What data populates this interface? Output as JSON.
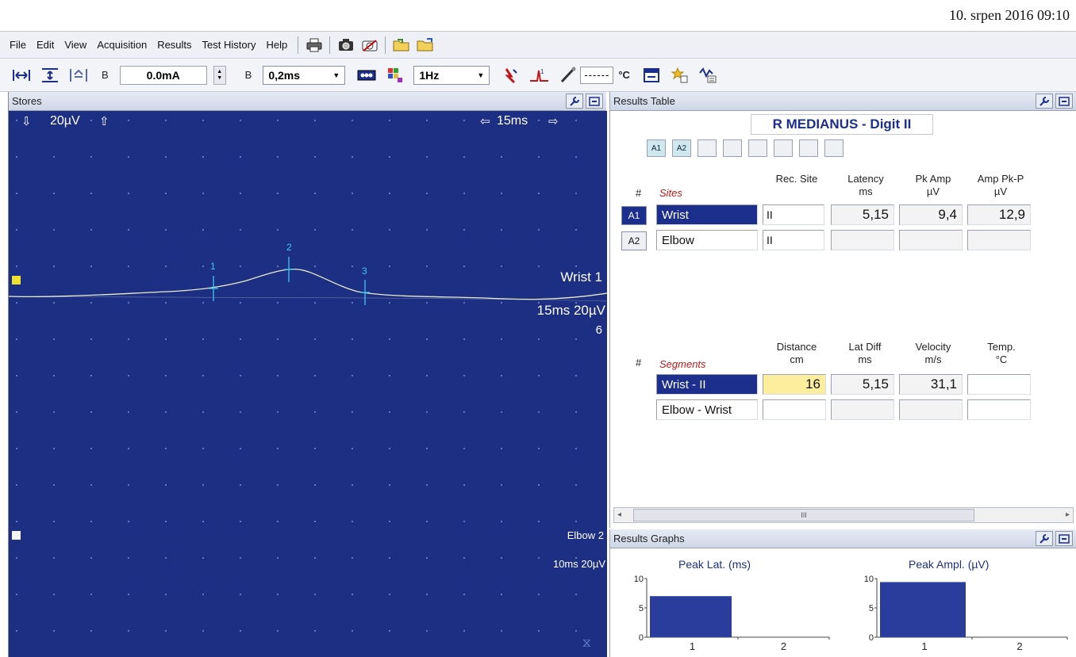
{
  "window": {
    "datetime": "10. srpen 2016 09:10"
  },
  "menu": [
    "File",
    "Edit",
    "View",
    "Acquisition",
    "Results",
    "Test History",
    "Help"
  ],
  "menu_icons": [
    "printer-icon",
    "camera-icon",
    "camera-off-icon",
    "folder-open-icon",
    "folder-add-icon"
  ],
  "toolbar": {
    "mode_label_1": "B",
    "current_value": "0.0mA",
    "mode_label_2": "B",
    "duration_value": "0,2ms",
    "rate_value": "1Hz",
    "temperature_value": "------",
    "temperature_unit": "°C"
  },
  "stores": {
    "title": "Stores",
    "sensitivity": "20µV",
    "timebase": "15ms",
    "trace1": {
      "name": "Wrist 1",
      "settings": "15ms 20µV",
      "extra": "6"
    },
    "trace2": {
      "name": "Elbow 2",
      "settings": "10ms 20µV"
    },
    "markers": [
      "1",
      "2",
      "3"
    ]
  },
  "results": {
    "title": "Results Table",
    "test_name": "R MEDIANUS - Digit II",
    "marker_buttons": [
      "A1",
      "A2"
    ],
    "sites_table": {
      "hash": "#",
      "sites_label": "Sites",
      "headers": {
        "rec_site": "Rec. Site",
        "latency": "Latency",
        "latency_unit": "ms",
        "pk_amp": "Pk Amp",
        "pk_amp_unit": "µV",
        "amp_pkp": "Amp Pk-P",
        "amp_pkp_unit": "µV"
      },
      "rows": [
        {
          "id": "A1",
          "site": "Wrist",
          "rec_site": "II",
          "latency": "5,15",
          "pk_amp": "9,4",
          "amp_pkp": "12,9"
        },
        {
          "id": "A2",
          "site": "Elbow",
          "rec_site": "II",
          "latency": "",
          "pk_amp": "",
          "amp_pkp": ""
        }
      ]
    },
    "segments_table": {
      "hash": "#",
      "segments_label": "Segments",
      "headers": {
        "distance": "Distance",
        "distance_unit": "cm",
        "lat_diff": "Lat Diff",
        "lat_diff_unit": "ms",
        "velocity": "Velocity",
        "velocity_unit": "m/s",
        "temp": "Temp.",
        "temp_unit": "°C"
      },
      "rows": [
        {
          "segment": "Wrist - II",
          "distance": "16",
          "lat_diff": "5,15",
          "velocity": "31,1",
          "temp": ""
        },
        {
          "segment": "Elbow - Wrist",
          "distance": "",
          "lat_diff": "",
          "velocity": "",
          "temp": ""
        }
      ]
    },
    "scroll_thumb": "III"
  },
  "graphs": {
    "title": "Results Graphs",
    "chart_data": [
      {
        "type": "bar",
        "title": "Peak Lat. (ms)",
        "categories": [
          "1",
          "2"
        ],
        "values": [
          7,
          0
        ],
        "ylim": [
          0,
          10
        ],
        "yticks": [
          "0",
          "5",
          "10"
        ],
        "color": "#2a3d9c"
      },
      {
        "type": "bar",
        "title": "Peak Ampl. (µV)",
        "categories": [
          "1",
          "2"
        ],
        "values": [
          9.4,
          0
        ],
        "ylim": [
          0,
          10
        ],
        "yticks": [
          "0",
          "5",
          "10"
        ],
        "color": "#2a3d9c"
      }
    ]
  }
}
